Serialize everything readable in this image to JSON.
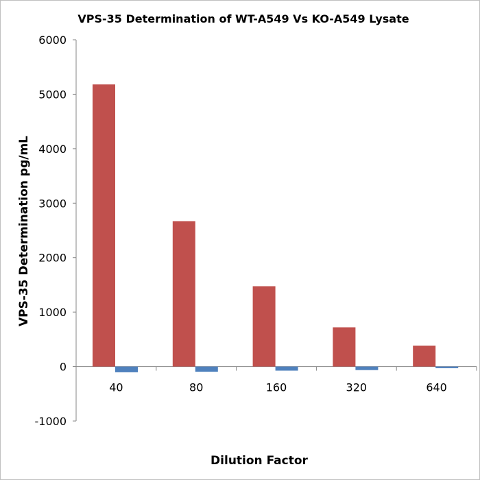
{
  "chart_data": {
    "type": "bar",
    "title": "VPS-35  Determination of WT-A549   Vs KO-A549  Lysate",
    "xlabel": "Dilution Factor",
    "ylabel": "VPS-35 Determination pg/mL",
    "categories": [
      "40",
      "80",
      "160",
      "320",
      "640"
    ],
    "ylim": [
      -1000,
      6000
    ],
    "yticks": [
      -1000,
      0,
      1000,
      2000,
      3000,
      4000,
      5000,
      6000
    ],
    "grid": false,
    "legend": "none",
    "series": [
      {
        "color": "#c0504d",
        "values": [
          5180,
          2670,
          1475,
          720,
          385
        ]
      },
      {
        "color": "#4f81bd",
        "values": [
          -105,
          -95,
          -75,
          -65,
          -30
        ]
      }
    ]
  }
}
